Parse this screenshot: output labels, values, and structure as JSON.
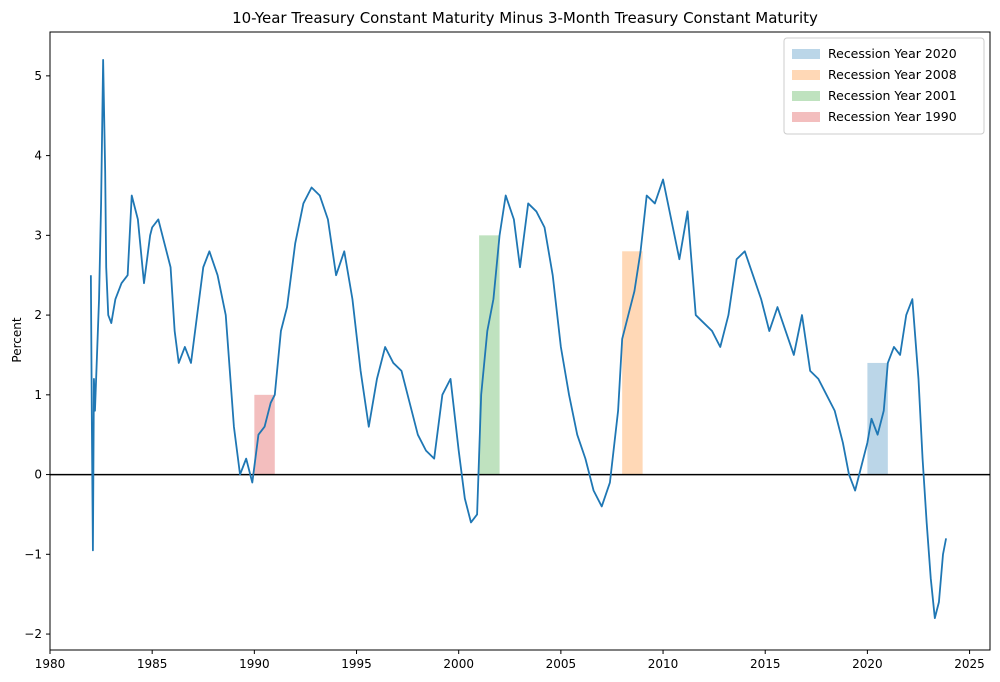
{
  "chart_data": {
    "type": "line",
    "title": "10-Year Treasury Constant Maturity Minus 3-Month Treasury Constant Maturity",
    "xlabel": "",
    "ylabel": "Percent",
    "xlim": [
      1980,
      2026
    ],
    "ylim": [
      -2.2,
      5.55
    ],
    "x_ticks": [
      1980,
      1985,
      1990,
      1995,
      2000,
      2005,
      2010,
      2015,
      2020,
      2025
    ],
    "y_ticks": [
      -2,
      -1,
      0,
      1,
      2,
      3,
      4,
      5
    ],
    "y_tick_labels": [
      "−2",
      "−1",
      "0",
      "1",
      "2",
      "3",
      "4",
      "5"
    ],
    "grid": false,
    "zero_line": true,
    "legend_position": "top-right",
    "series": [
      {
        "color": "#1f77b4",
        "x": [
          1982.0,
          1982.05,
          1982.1,
          1982.15,
          1982.2,
          1982.3,
          1982.4,
          1982.5,
          1982.6,
          1982.7,
          1982.75,
          1982.85,
          1983.0,
          1983.2,
          1983.5,
          1983.8,
          1984.0,
          1984.3,
          1984.6,
          1984.9,
          1985.0,
          1985.3,
          1985.6,
          1985.9,
          1986.1,
          1986.3,
          1986.6,
          1986.9,
          1987.2,
          1987.5,
          1987.8,
          1988.2,
          1988.6,
          1989.0,
          1989.3,
          1989.6,
          1989.9,
          1990.2,
          1990.5,
          1990.8,
          1991.0,
          1991.3,
          1991.6,
          1992.0,
          1992.4,
          1992.8,
          1993.2,
          1993.6,
          1994.0,
          1994.4,
          1994.8,
          1995.2,
          1995.6,
          1996.0,
          1996.4,
          1996.8,
          1997.2,
          1997.6,
          1998.0,
          1998.4,
          1998.8,
          1999.2,
          1999.6,
          2000.0,
          2000.3,
          2000.6,
          2000.9,
          2001.1,
          2001.4,
          2001.7,
          2002.0,
          2002.3,
          2002.7,
          2003.0,
          2003.4,
          2003.8,
          2004.2,
          2004.6,
          2005.0,
          2005.4,
          2005.8,
          2006.2,
          2006.6,
          2007.0,
          2007.4,
          2007.8,
          2008.0,
          2008.3,
          2008.6,
          2008.9,
          2009.2,
          2009.6,
          2010.0,
          2010.4,
          2010.8,
          2011.2,
          2011.6,
          2012.0,
          2012.4,
          2012.8,
          2013.2,
          2013.6,
          2014.0,
          2014.4,
          2014.8,
          2015.2,
          2015.6,
          2016.0,
          2016.4,
          2016.8,
          2017.2,
          2017.6,
          2018.0,
          2018.4,
          2018.8,
          2019.1,
          2019.4,
          2019.7,
          2020.0,
          2020.2,
          2020.5,
          2020.8,
          2021.0,
          2021.3,
          2021.6,
          2021.9,
          2022.2,
          2022.5,
          2022.7,
          2022.9,
          2023.1,
          2023.3,
          2023.5,
          2023.7,
          2023.85
        ],
        "y": [
          2.5,
          0.6,
          -0.95,
          1.2,
          0.8,
          1.5,
          2.2,
          3.4,
          5.2,
          3.8,
          2.6,
          2.0,
          1.9,
          2.2,
          2.4,
          2.5,
          3.5,
          3.2,
          2.4,
          3.0,
          3.1,
          3.2,
          2.9,
          2.6,
          1.8,
          1.4,
          1.6,
          1.4,
          2.0,
          2.6,
          2.8,
          2.5,
          2.0,
          0.6,
          0.0,
          0.2,
          -0.1,
          0.5,
          0.6,
          0.9,
          1.0,
          1.8,
          2.1,
          2.9,
          3.4,
          3.6,
          3.5,
          3.2,
          2.5,
          2.8,
          2.2,
          1.3,
          0.6,
          1.2,
          1.6,
          1.4,
          1.3,
          0.9,
          0.5,
          0.3,
          0.2,
          1.0,
          1.2,
          0.3,
          -0.3,
          -0.6,
          -0.5,
          1.0,
          1.8,
          2.2,
          3.0,
          3.5,
          3.2,
          2.6,
          3.4,
          3.3,
          3.1,
          2.5,
          1.6,
          1.0,
          0.5,
          0.2,
          -0.2,
          -0.4,
          -0.1,
          0.8,
          1.7,
          2.0,
          2.3,
          2.8,
          3.5,
          3.4,
          3.7,
          3.2,
          2.7,
          3.3,
          2.0,
          1.9,
          1.8,
          1.6,
          2.0,
          2.7,
          2.8,
          2.5,
          2.2,
          1.8,
          2.1,
          1.8,
          1.5,
          2.0,
          1.3,
          1.2,
          1.0,
          0.8,
          0.4,
          0.0,
          -0.2,
          0.1,
          0.4,
          0.7,
          0.5,
          0.8,
          1.4,
          1.6,
          1.5,
          2.0,
          2.2,
          1.2,
          0.2,
          -0.6,
          -1.3,
          -1.8,
          -1.6,
          -1.0,
          -0.8
        ]
      }
    ],
    "recessions": [
      {
        "name": "Recession Year 2020",
        "start": 2020.0,
        "end": 2021.0,
        "color": "#1f77b4"
      },
      {
        "name": "Recession Year 2008",
        "start": 2008.0,
        "end": 2009.0,
        "color": "#ff7f0e"
      },
      {
        "name": "Recession Year 2001",
        "start": 2001.0,
        "end": 2002.0,
        "color": "#2ca02c"
      },
      {
        "name": "Recession Year 1990",
        "start": 1990.0,
        "end": 1991.0,
        "color": "#d62728"
      }
    ]
  }
}
